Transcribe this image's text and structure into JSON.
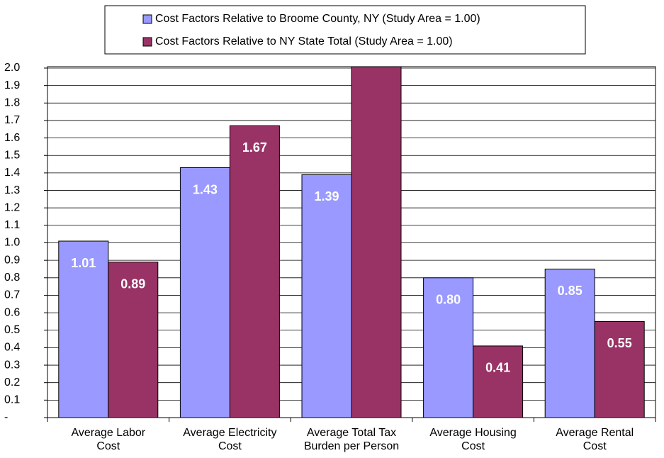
{
  "chart_data": {
    "type": "bar",
    "categories": [
      "Average Labor\nCost",
      "Average Electricity\nCost",
      "Average Total Tax\nBurden per Person",
      "Average Housing\nCost",
      "Average Rental\nCost"
    ],
    "series": [
      {
        "name": "Cost Factors Relative to Broome County, NY (Study Area = 1.00)",
        "color": "#9999ff",
        "values": [
          1.01,
          1.43,
          1.39,
          0.8,
          0.85
        ],
        "value_labels": [
          "1.01",
          "1.43",
          "1.39",
          "0.80",
          "0.85"
        ]
      },
      {
        "name": "Cost Factors Relative to NY State Total (Study Area = 1.00)",
        "color": "#993366",
        "values": [
          0.89,
          1.67,
          2.05,
          0.41,
          0.55
        ],
        "value_labels": [
          "0.89",
          "1.67",
          null,
          "0.41",
          "0.55"
        ]
      }
    ],
    "ylim": [
      0,
      2.0
    ],
    "yticks": [
      {
        "value": 0,
        "label": "-"
      },
      0.1,
      0.2,
      0.3,
      0.4,
      0.5,
      0.6,
      0.7,
      0.8,
      0.9,
      {
        "value": 1.0,
        "label": "1.0"
      },
      1.1,
      1.2,
      1.3,
      1.4,
      1.5,
      1.6,
      1.7,
      1.8,
      1.9,
      {
        "value": 2.0,
        "label": "2.0"
      }
    ],
    "grid": true,
    "legend": "top"
  }
}
